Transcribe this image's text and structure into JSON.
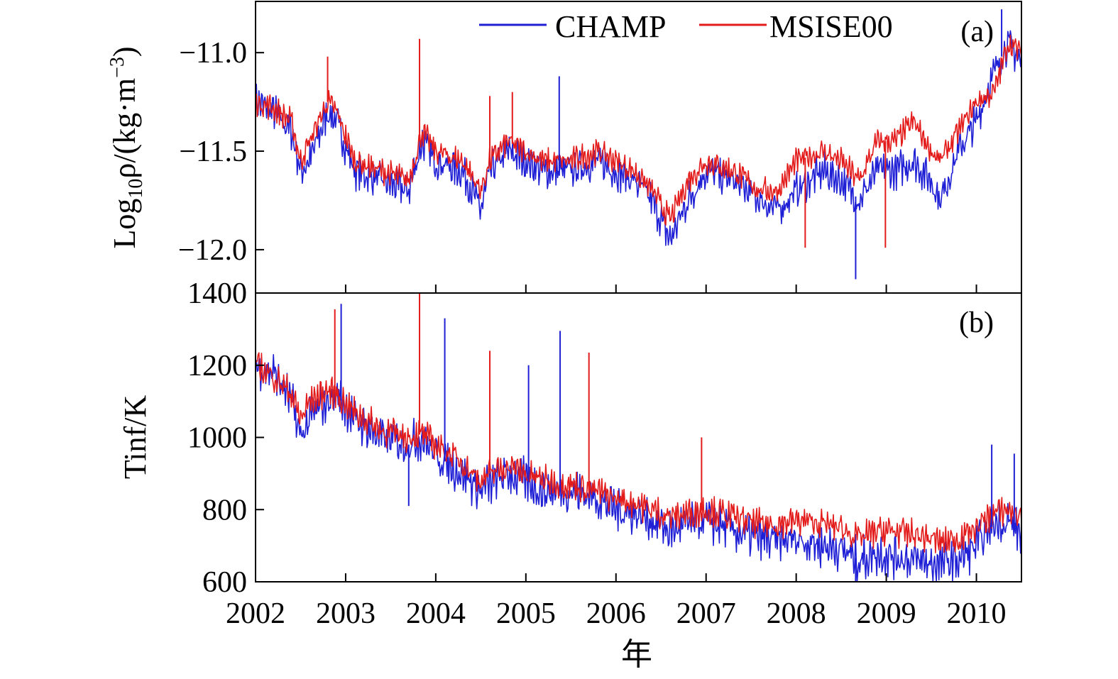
{
  "colors": {
    "champ": "#1f1fd6",
    "msise": "#e31b1b",
    "axis": "#000000"
  },
  "chart_data": [
    {
      "type": "line",
      "panel": "a",
      "panel_label": "(a)",
      "ylabel": "Log10ρ/(kg·m−3)",
      "ylabel_parts": {
        "base": "Log",
        "sub": "10",
        "mid": "ρ/(kg·m",
        "sup": "−3",
        "end": ")"
      },
      "ylim": [
        -12.22,
        -10.74
      ],
      "yticks": [
        -11.0,
        -11.5,
        -12.0
      ],
      "ytick_labels": [
        "−11.0",
        "−11.5",
        "−12.0"
      ],
      "xlim": [
        2002.0,
        2010.5
      ],
      "legend_position": "top",
      "grid": false,
      "series": [
        {
          "name": "CHAMP",
          "color": "#1f1fd6",
          "x": [
            2002.0,
            2002.2,
            2002.4,
            2002.5,
            2002.6,
            2002.8,
            2002.9,
            2003.1,
            2003.4,
            2003.7,
            2003.85,
            2004.0,
            2004.3,
            2004.5,
            2004.6,
            2004.8,
            2005.0,
            2005.2,
            2005.5,
            2005.8,
            2006.0,
            2006.2,
            2006.4,
            2006.6,
            2006.8,
            2007.0,
            2007.3,
            2007.6,
            2007.8,
            2008.0,
            2008.3,
            2008.5,
            2008.7,
            2008.9,
            2009.1,
            2009.3,
            2009.5,
            2009.6,
            2009.8,
            2010.0,
            2010.2,
            2010.35,
            2010.5
          ],
          "y": [
            -11.25,
            -11.3,
            -11.4,
            -11.6,
            -11.55,
            -11.3,
            -11.35,
            -11.6,
            -11.65,
            -11.7,
            -11.45,
            -11.55,
            -11.6,
            -11.8,
            -11.6,
            -11.5,
            -11.55,
            -11.6,
            -11.6,
            -11.55,
            -11.6,
            -11.65,
            -11.75,
            -11.95,
            -11.75,
            -11.6,
            -11.65,
            -11.75,
            -11.8,
            -11.7,
            -11.6,
            -11.65,
            -11.75,
            -11.6,
            -11.6,
            -11.55,
            -11.65,
            -11.75,
            -11.5,
            -11.35,
            -11.1,
            -10.95,
            -11.05
          ]
        },
        {
          "name": "MSISE00",
          "color": "#e31b1b",
          "x": [
            2002.0,
            2002.2,
            2002.4,
            2002.5,
            2002.6,
            2002.8,
            2002.9,
            2003.1,
            2003.4,
            2003.7,
            2003.85,
            2004.0,
            2004.3,
            2004.5,
            2004.6,
            2004.8,
            2005.0,
            2005.2,
            2005.5,
            2005.8,
            2006.0,
            2006.2,
            2006.4,
            2006.6,
            2006.8,
            2007.0,
            2007.3,
            2007.6,
            2007.8,
            2008.0,
            2008.3,
            2008.5,
            2008.7,
            2008.9,
            2009.1,
            2009.3,
            2009.5,
            2009.6,
            2009.8,
            2010.0,
            2010.2,
            2010.35,
            2010.5
          ],
          "y": [
            -11.25,
            -11.28,
            -11.35,
            -11.55,
            -11.45,
            -11.25,
            -11.3,
            -11.55,
            -11.6,
            -11.65,
            -11.4,
            -11.5,
            -11.55,
            -11.7,
            -11.55,
            -11.45,
            -11.5,
            -11.55,
            -11.55,
            -11.5,
            -11.55,
            -11.6,
            -11.7,
            -11.85,
            -11.65,
            -11.55,
            -11.6,
            -11.7,
            -11.7,
            -11.55,
            -11.5,
            -11.55,
            -11.65,
            -11.45,
            -11.45,
            -11.35,
            -11.5,
            -11.55,
            -11.4,
            -11.25,
            -11.2,
            -10.95,
            -11.0
          ]
        }
      ]
    },
    {
      "type": "line",
      "panel": "b",
      "panel_label": "(b)",
      "ylabel": "Tinf/K",
      "ylim": [
        600,
        1400
      ],
      "yticks": [
        600,
        800,
        1000,
        1200,
        1400
      ],
      "ytick_labels": [
        "600",
        "800",
        "1000",
        "1200",
        "1400"
      ],
      "xlim": [
        2002.0,
        2010.5
      ],
      "xticks": [
        2002,
        2003,
        2004,
        2005,
        2006,
        2007,
        2008,
        2009,
        2010
      ],
      "xtick_labels": [
        "2002",
        "2003",
        "2004",
        "2005",
        "2006",
        "2007",
        "2008",
        "2009",
        "2010"
      ],
      "xlabel": "年",
      "grid": false,
      "series": [
        {
          "name": "CHAMP",
          "color": "#1f1fd6",
          "x": [
            2002.0,
            2002.2,
            2002.4,
            2002.5,
            2002.6,
            2002.8,
            2002.9,
            2003.1,
            2003.4,
            2003.7,
            2003.85,
            2004.0,
            2004.3,
            2004.5,
            2004.6,
            2004.8,
            2005.0,
            2005.2,
            2005.5,
            2005.8,
            2006.0,
            2006.2,
            2006.4,
            2006.6,
            2006.8,
            2007.0,
            2007.3,
            2007.6,
            2007.8,
            2008.0,
            2008.3,
            2008.5,
            2008.7,
            2008.9,
            2009.1,
            2009.3,
            2009.5,
            2009.6,
            2009.8,
            2010.0,
            2010.2,
            2010.35,
            2010.5
          ],
          "y": [
            1200,
            1180,
            1100,
            1000,
            1050,
            1100,
            1120,
            1050,
            1000,
            980,
            1000,
            950,
            900,
            850,
            870,
            900,
            880,
            850,
            850,
            830,
            800,
            790,
            770,
            740,
            760,
            770,
            740,
            720,
            710,
            720,
            700,
            690,
            660,
            680,
            670,
            660,
            650,
            650,
            660,
            700,
            760,
            770,
            730
          ]
        },
        {
          "name": "MSISE00",
          "color": "#e31b1b",
          "x": [
            2002.0,
            2002.2,
            2002.4,
            2002.5,
            2002.6,
            2002.8,
            2002.9,
            2003.1,
            2003.4,
            2003.7,
            2003.85,
            2004.0,
            2004.3,
            2004.5,
            2004.6,
            2004.8,
            2005.0,
            2005.2,
            2005.5,
            2005.8,
            2006.0,
            2006.2,
            2006.4,
            2006.6,
            2006.8,
            2007.0,
            2007.3,
            2007.6,
            2007.8,
            2008.0,
            2008.3,
            2008.5,
            2008.7,
            2008.9,
            2009.1,
            2009.3,
            2009.5,
            2009.6,
            2009.8,
            2010.0,
            2010.2,
            2010.35,
            2010.5
          ],
          "y": [
            1200,
            1170,
            1120,
            1050,
            1100,
            1130,
            1120,
            1070,
            1020,
            1000,
            1010,
            980,
            930,
            880,
            900,
            920,
            900,
            880,
            870,
            850,
            830,
            820,
            800,
            780,
            790,
            800,
            780,
            760,
            760,
            770,
            760,
            750,
            720,
            740,
            740,
            730,
            720,
            710,
            720,
            750,
            790,
            800,
            780
          ]
        }
      ]
    }
  ],
  "spikes": {
    "a": [
      {
        "series": "MSISE00",
        "x": 2002.8,
        "y": -11.02
      },
      {
        "series": "MSISE00",
        "x": 2003.82,
        "y": -10.93
      },
      {
        "series": "MSISE00",
        "x": 2004.6,
        "y": -11.22
      },
      {
        "series": "MSISE00",
        "x": 2004.85,
        "y": -11.2
      },
      {
        "series": "CHAMP",
        "x": 2005.37,
        "y": -11.12
      },
      {
        "series": "MSISE00",
        "x": 2008.1,
        "y": -11.99
      },
      {
        "series": "MSISE00",
        "x": 2008.99,
        "y": -11.99
      },
      {
        "series": "CHAMP",
        "x": 2008.66,
        "y": -12.15
      },
      {
        "series": "CHAMP",
        "x": 2010.28,
        "y": -10.78
      }
    ],
    "b": [
      {
        "series": "CHAMP",
        "x": 2002.95,
        "y": 1370
      },
      {
        "series": "MSISE00",
        "x": 2002.88,
        "y": 1355
      },
      {
        "series": "MSISE00",
        "x": 2003.82,
        "y": 1400
      },
      {
        "series": "CHAMP",
        "x": 2004.1,
        "y": 1330
      },
      {
        "series": "MSISE00",
        "x": 2004.6,
        "y": 1240
      },
      {
        "series": "CHAMP",
        "x": 2005.03,
        "y": 1200
      },
      {
        "series": "CHAMP",
        "x": 2005.38,
        "y": 1295
      },
      {
        "series": "MSISE00",
        "x": 2005.7,
        "y": 1235
      },
      {
        "series": "MSISE00",
        "x": 2006.95,
        "y": 1000
      },
      {
        "series": "CHAMP",
        "x": 2010.17,
        "y": 980
      },
      {
        "series": "CHAMP",
        "x": 2010.42,
        "y": 955
      },
      {
        "series": "CHAMP",
        "x": 2003.7,
        "y": 810
      },
      {
        "series": "CHAMP",
        "x": 2008.66,
        "y": 600
      }
    ]
  },
  "legend": {
    "entries": [
      {
        "label": "CHAMP",
        "color": "#1f1fd6"
      },
      {
        "label": "MSISE00",
        "color": "#e31b1b"
      }
    ]
  }
}
